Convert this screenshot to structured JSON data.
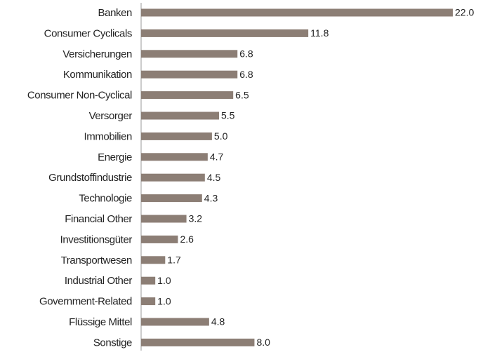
{
  "chart_data": {
    "type": "bar",
    "orientation": "horizontal",
    "categories": [
      "Banken",
      "Consumer Cyclicals",
      "Versicherungen",
      "Kommunikation",
      "Consumer Non-Cyclical",
      "Versorger",
      "Immobilien",
      "Energie",
      "Grundstoffindustrie",
      "Technologie",
      "Financial Other",
      "Investitionsgüter",
      "Transportwesen",
      "Industrial Other",
      "Government-Related",
      "Flüssige Mittel",
      "Sonstige"
    ],
    "values": [
      22.0,
      11.8,
      6.8,
      6.8,
      6.5,
      5.5,
      5.0,
      4.7,
      4.5,
      4.3,
      3.2,
      2.6,
      1.7,
      1.0,
      1.0,
      4.8,
      8.0
    ],
    "value_labels": [
      "22.0",
      "11.8",
      "6.8",
      "6.8",
      "6.5",
      "5.5",
      "5.0",
      "4.7",
      "4.5",
      "4.3",
      "3.2",
      "2.6",
      "1.7",
      "1.0",
      "1.0",
      "4.8",
      "8.0"
    ],
    "color": "#8c7e75"
  }
}
